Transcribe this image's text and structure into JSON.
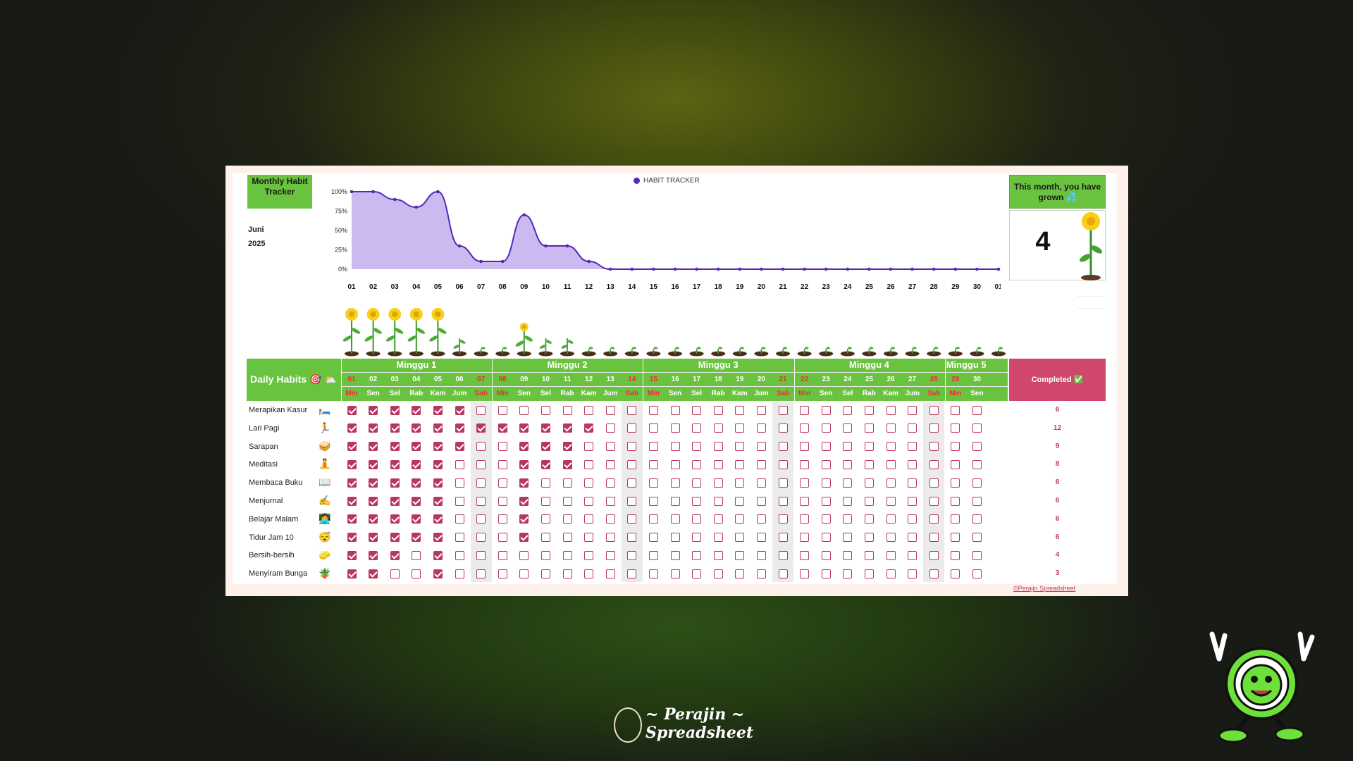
{
  "header": {
    "title": "Monthly Habit Tracker",
    "month": "Juni",
    "year": "2025"
  },
  "chart_data": {
    "type": "area",
    "legend": "HABIT TRACKER",
    "ytick_labels": [
      "100%",
      "75%",
      "50%",
      "25%",
      "0%"
    ],
    "ylim": [
      0,
      100
    ],
    "categories": [
      "01",
      "02",
      "03",
      "04",
      "05",
      "06",
      "07",
      "08",
      "09",
      "10",
      "11",
      "12",
      "13",
      "14",
      "15",
      "16",
      "17",
      "18",
      "19",
      "20",
      "21",
      "22",
      "23",
      "24",
      "25",
      "26",
      "27",
      "28",
      "29",
      "30",
      "01"
    ],
    "series": [
      {
        "name": "HABIT TRACKER",
        "values": [
          100,
          100,
          90,
          80,
          100,
          30,
          10,
          10,
          70,
          30,
          30,
          10,
          0,
          0,
          0,
          0,
          0,
          0,
          0,
          0,
          0,
          0,
          0,
          0,
          0,
          0,
          0,
          0,
          0,
          0,
          0
        ]
      }
    ]
  },
  "growth": {
    "title": "This month, you have grown 💦",
    "count": "4"
  },
  "plant_levels": [
    3,
    3,
    3,
    3,
    3,
    1,
    0,
    0,
    2,
    1,
    1,
    0,
    0,
    0,
    0,
    0,
    0,
    0,
    0,
    0,
    0,
    0,
    0,
    0,
    0,
    0,
    0,
    0,
    0,
    0,
    0
  ],
  "table": {
    "title": "Daily Habits 🎯 ⛅",
    "completed_label": "Completed ✅",
    "weeks": [
      "Minggu 1",
      "Minggu 2",
      "Minggu 3",
      "Minggu 4",
      "Minggu 5"
    ],
    "dates": [
      "01",
      "02",
      "03",
      "04",
      "05",
      "06",
      "07",
      "08",
      "09",
      "10",
      "11",
      "12",
      "13",
      "14",
      "15",
      "16",
      "17",
      "18",
      "19",
      "20",
      "21",
      "22",
      "23",
      "24",
      "25",
      "26",
      "27",
      "28",
      "29",
      "30"
    ],
    "days": [
      "Min",
      "Sen",
      "Sel",
      "Rab",
      "Kam",
      "Jum",
      "Sab",
      "Min",
      "Sen",
      "Sel",
      "Rab",
      "Kam",
      "Jum",
      "Sab",
      "Min",
      "Sen",
      "Sel",
      "Rab",
      "Kam",
      "Jum",
      "Sab",
      "Min",
      "Sen",
      "Sel",
      "Rab",
      "Kam",
      "Jum",
      "Sab",
      "Min",
      "Sen"
    ],
    "habits": [
      {
        "name": "Merapikan Kasur",
        "icon": "🛏️",
        "count": "6",
        "checks": [
          1,
          1,
          1,
          1,
          1,
          1,
          0,
          0,
          0,
          0,
          0,
          0,
          0,
          0,
          0,
          0,
          0,
          0,
          0,
          0,
          0,
          0,
          0,
          0,
          0,
          0,
          0,
          0,
          0,
          0
        ]
      },
      {
        "name": "Lari Pagi",
        "icon": "🏃",
        "count": "12",
        "checks": [
          1,
          1,
          1,
          1,
          1,
          1,
          1,
          1,
          1,
          1,
          1,
          1,
          0,
          0,
          0,
          0,
          0,
          0,
          0,
          0,
          0,
          0,
          0,
          0,
          0,
          0,
          0,
          0,
          0,
          0
        ]
      },
      {
        "name": "Sarapan",
        "icon": "🥪",
        "count": "9",
        "checks": [
          1,
          1,
          1,
          1,
          1,
          1,
          0,
          0,
          1,
          1,
          1,
          0,
          0,
          0,
          0,
          0,
          0,
          0,
          0,
          0,
          0,
          0,
          0,
          0,
          0,
          0,
          0,
          0,
          0,
          0
        ]
      },
      {
        "name": "Meditasi",
        "icon": "🧘",
        "count": "8",
        "checks": [
          1,
          1,
          1,
          1,
          1,
          0,
          0,
          0,
          1,
          1,
          1,
          0,
          0,
          0,
          0,
          0,
          0,
          0,
          0,
          0,
          0,
          0,
          0,
          0,
          0,
          0,
          0,
          0,
          0,
          0
        ]
      },
      {
        "name": "Membaca Buku",
        "icon": "📖",
        "count": "6",
        "checks": [
          1,
          1,
          1,
          1,
          1,
          0,
          0,
          0,
          1,
          0,
          0,
          0,
          0,
          0,
          0,
          0,
          0,
          0,
          0,
          0,
          0,
          0,
          0,
          0,
          0,
          0,
          0,
          0,
          0,
          0
        ]
      },
      {
        "name": "Menjurnal",
        "icon": "✍️",
        "count": "6",
        "checks": [
          1,
          1,
          1,
          1,
          1,
          0,
          0,
          0,
          1,
          0,
          0,
          0,
          0,
          0,
          0,
          0,
          0,
          0,
          0,
          0,
          0,
          0,
          0,
          0,
          0,
          0,
          0,
          0,
          0,
          0
        ]
      },
      {
        "name": "Belajar Malam",
        "icon": "👩‍💻",
        "count": "6",
        "checks": [
          1,
          1,
          1,
          1,
          1,
          0,
          0,
          0,
          1,
          0,
          0,
          0,
          0,
          0,
          0,
          0,
          0,
          0,
          0,
          0,
          0,
          0,
          0,
          0,
          0,
          0,
          0,
          0,
          0,
          0
        ]
      },
      {
        "name": "Tidur Jam 10",
        "icon": "😴",
        "count": "6",
        "checks": [
          1,
          1,
          1,
          1,
          1,
          0,
          0,
          0,
          1,
          0,
          0,
          0,
          0,
          0,
          0,
          0,
          0,
          0,
          0,
          0,
          0,
          0,
          0,
          0,
          0,
          0,
          0,
          0,
          0,
          0
        ]
      },
      {
        "name": "Bersih-bersih",
        "icon": "🧽",
        "count": "4",
        "checks": [
          1,
          1,
          1,
          0,
          1,
          0,
          0,
          0,
          0,
          0,
          0,
          0,
          0,
          0,
          0,
          0,
          0,
          0,
          0,
          0,
          0,
          0,
          0,
          0,
          0,
          0,
          0,
          0,
          0,
          0
        ]
      },
      {
        "name": "Menyiram Bunga",
        "icon": "🪴",
        "count": "3",
        "checks": [
          1,
          1,
          0,
          0,
          1,
          0,
          0,
          0,
          0,
          0,
          0,
          0,
          0,
          0,
          0,
          0,
          0,
          0,
          0,
          0,
          0,
          0,
          0,
          0,
          0,
          0,
          0,
          0,
          0,
          0
        ]
      }
    ]
  },
  "footer": {
    "copyright": "©Perajin Spreadsheet",
    "brand_line1": "~ Perajin ~",
    "brand_line2": "Spreadsheet"
  },
  "colors": {
    "green": "#6ac33f",
    "crimson": "#b8375e",
    "chart_line": "#5528b6",
    "chart_fill": "#cbbaf0"
  }
}
